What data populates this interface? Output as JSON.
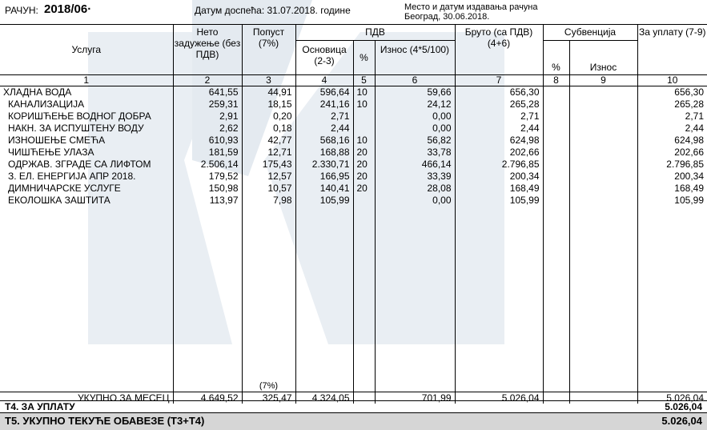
{
  "header": {
    "invoice_label": "РАЧУН:",
    "invoice_number": "2018/06·",
    "due_date_text": "Датум доспећа: 31.07.2018. године",
    "place_date_caption": "Место и датум издавања рачуна",
    "place_date_value": "Београд, 30.06.2018."
  },
  "columns": {
    "service": "Услуга",
    "net": "Нето задужење (без ПДВ)",
    "discount": "Попуст (7%)",
    "vat_group": "ПДВ",
    "vat_base": "Основица (2-3)",
    "vat_pct": "%",
    "vat_amount": "Износ (4*5/100)",
    "gross": "Бруто (са ПДВ) (4+6)",
    "subsidy_group": "Субвенција",
    "subsidy_pct": "%",
    "subsidy_amount": "Износ",
    "to_pay": "За уплату (7-9)"
  },
  "column_numbers": [
    "1",
    "2",
    "3",
    "4",
    "5",
    "6",
    "7",
    "8",
    "9",
    "10"
  ],
  "rows": [
    {
      "service": "ХЛАДНА ВОДА",
      "net": "641,55",
      "discount": "44,91",
      "base": "596,64",
      "pct": "10",
      "vat": "59,66",
      "gross": "656,30",
      "pay": "656,30"
    },
    {
      "service": "КАНАЛИЗАЦИЈА",
      "net": "259,31",
      "discount": "18,15",
      "base": "241,16",
      "pct": "10",
      "vat": "24,12",
      "gross": "265,28",
      "pay": "265,28"
    },
    {
      "service": "КОРИШЋЕЊЕ ВОДНОГ ДОБРА",
      "net": "2,91",
      "discount": "0,20",
      "base": "2,71",
      "pct": "",
      "vat": "0,00",
      "gross": "2,71",
      "pay": "2,71"
    },
    {
      "service": "НАКН. ЗА ИСПУШТЕНУ ВОДУ",
      "net": "2,62",
      "discount": "0,18",
      "base": "2,44",
      "pct": "",
      "vat": "0,00",
      "gross": "2,44",
      "pay": "2,44"
    },
    {
      "service": "ИЗНОШЕЊЕ СМЕЋА",
      "net": "610,93",
      "discount": "42,77",
      "base": "568,16",
      "pct": "10",
      "vat": "56,82",
      "gross": "624,98",
      "pay": "624,98"
    },
    {
      "service": "ЧИШЋЕЊЕ УЛАЗА",
      "net": "181,59",
      "discount": "12,71",
      "base": "168,88",
      "pct": "20",
      "vat": "33,78",
      "gross": "202,66",
      "pay": "202,66"
    },
    {
      "service": "ОДРЖАВ. ЗГРАДЕ СА ЛИФТОМ",
      "net": "2.506,14",
      "discount": "175,43",
      "base": "2.330,71",
      "pct": "20",
      "vat": "466,14",
      "gross": "2.796,85",
      "pay": "2.796,85"
    },
    {
      "service": "З. ЕЛ. ЕНЕРГИЈА АПР 2018.",
      "net": "179,52",
      "discount": "12,57",
      "base": "166,95",
      "pct": "20",
      "vat": "33,39",
      "gross": "200,34",
      "pay": "200,34"
    },
    {
      "service": "ДИМНИЧАРСКЕ УСЛУГЕ",
      "net": "150,98",
      "discount": "10,57",
      "base": "140,41",
      "pct": "20",
      "vat": "28,08",
      "gross": "168,49",
      "pay": "168,49"
    },
    {
      "service": "ЕКОЛОШКА ЗАШТИТА",
      "net": "113,97",
      "discount": "7,98",
      "base": "105,99",
      "pct": "",
      "vat": "0,00",
      "gross": "105,99",
      "pay": "105,99"
    }
  ],
  "totals": {
    "discount_note": "(7%)",
    "label": "УКУПНО ЗА МЕСЕЦ",
    "net": "4.649,52",
    "discount": "325,47",
    "base": "4.324,05",
    "vat": "701,99",
    "gross": "5.026,04",
    "pay": "5.026,04"
  },
  "t4": {
    "label": "Т4. ЗА УПЛАТУ",
    "value": "5.026,04"
  },
  "t5": {
    "label": "Т5. УКУПНО ТЕКУЋЕ ОБАВЕЗЕ (Т3+Т4)",
    "value": "5.026,04"
  },
  "colors": {
    "watermark": "#e8eef4",
    "total_band": "#d6d6d6"
  }
}
